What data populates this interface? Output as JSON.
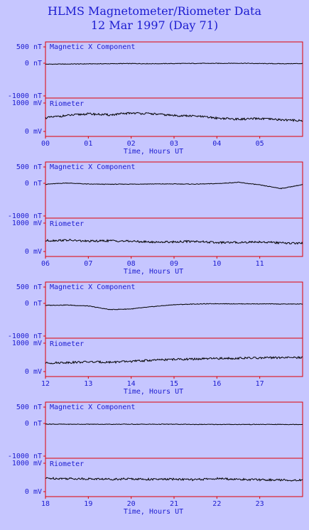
{
  "title": "HLMS Magnetometer/Riometer Data",
  "subtitle": "12 Mar 1997 (Day 71)",
  "colors": {
    "background": "#c6c6ff",
    "frame": "#e00000",
    "text": "#1c1cd0",
    "trace": "#000000"
  },
  "chart_data": [
    {
      "type": "line",
      "x_hour_ticks": [
        "00",
        "01",
        "02",
        "03",
        "04",
        "05"
      ],
      "xlabel": "Time, Hours UT",
      "xlim": [
        0,
        6
      ],
      "top": {
        "label": "Magnetic X Component",
        "ylim": [
          -1000,
          500
        ],
        "ytick_labels": [
          "500 nT",
          "0 nT",
          "-1000 nT"
        ],
        "x": [
          0,
          0.5,
          1,
          1.5,
          2,
          2.5,
          3,
          3.5,
          4,
          4.5,
          5,
          5.5,
          6
        ],
        "y": [
          -30,
          -25,
          -20,
          -15,
          -10,
          -15,
          -10,
          -5,
          -5,
          0,
          -10,
          -15,
          -10
        ]
      },
      "bottom": {
        "label": "Riometer",
        "ylim": [
          0,
          1000
        ],
        "ytick_labels": [
          "1000 mV",
          "0 mV"
        ],
        "x": [
          0,
          0.5,
          1,
          1.5,
          2,
          2.5,
          3,
          3.5,
          4,
          4.5,
          5,
          5.5,
          6
        ],
        "y": [
          480,
          560,
          620,
          580,
          650,
          620,
          560,
          540,
          470,
          430,
          450,
          410,
          380
        ]
      }
    },
    {
      "type": "line",
      "x_hour_ticks": [
        "06",
        "07",
        "08",
        "09",
        "10",
        "11"
      ],
      "xlabel": "Time, Hours UT",
      "xlim": [
        6,
        12
      ],
      "top": {
        "label": "Magnetic X Component",
        "ylim": [
          -1000,
          500
        ],
        "ytick_labels": [
          "500 nT",
          "0 nT",
          "-1000 nT"
        ],
        "x": [
          6,
          6.5,
          7,
          7.5,
          8,
          8.5,
          9,
          9.5,
          10,
          10.5,
          11,
          11.5,
          12
        ],
        "y": [
          -30,
          10,
          -25,
          -30,
          -25,
          -20,
          -20,
          -25,
          -10,
          30,
          -50,
          -160,
          -40
        ]
      },
      "bottom": {
        "label": "Riometer",
        "ylim": [
          0,
          1000
        ],
        "ytick_labels": [
          "1000 mV",
          "0 mV"
        ],
        "x": [
          6,
          6.5,
          7,
          7.5,
          8,
          8.5,
          9,
          9.5,
          10,
          10.5,
          11,
          11.5,
          12
        ],
        "y": [
          380,
          400,
          360,
          380,
          360,
          330,
          340,
          360,
          310,
          320,
          340,
          300,
          290
        ]
      }
    },
    {
      "type": "line",
      "x_hour_ticks": [
        "12",
        "13",
        "14",
        "15",
        "16",
        "17"
      ],
      "xlabel": "Time, Hours UT",
      "xlim": [
        12,
        18
      ],
      "top": {
        "label": "Magnetic X Component",
        "ylim": [
          -1000,
          500
        ],
        "ytick_labels": [
          "500 nT",
          "0 nT",
          "-1000 nT"
        ],
        "x": [
          12,
          12.5,
          13,
          13.5,
          14,
          14.5,
          15,
          15.5,
          16,
          16.5,
          17,
          17.5,
          18
        ],
        "y": [
          -60,
          -50,
          -80,
          -190,
          -170,
          -100,
          -40,
          -20,
          -10,
          -15,
          -15,
          -20,
          -20
        ]
      },
      "bottom": {
        "label": "Riometer",
        "ylim": [
          0,
          1000
        ],
        "ytick_labels": [
          "1000 mV",
          "0 mV"
        ],
        "x": [
          12,
          12.5,
          13,
          13.5,
          14,
          14.5,
          15,
          15.5,
          16,
          16.5,
          17,
          17.5,
          18
        ],
        "y": [
          300,
          320,
          340,
          330,
          360,
          400,
          430,
          440,
          460,
          470,
          480,
          490,
          490
        ]
      }
    },
    {
      "type": "line",
      "x_hour_ticks": [
        "18",
        "19",
        "20",
        "21",
        "22",
        "23"
      ],
      "xlabel": "Time, Hours UT",
      "xlim": [
        18,
        24
      ],
      "top": {
        "label": "Magnetic X Component",
        "ylim": [
          -1000,
          500
        ],
        "ytick_labels": [
          "500 nT",
          "0 nT",
          "-1000 nT"
        ],
        "x": [
          18,
          18.5,
          19,
          19.5,
          20,
          20.5,
          21,
          21.5,
          22,
          22.5,
          23,
          23.5,
          24
        ],
        "y": [
          -20,
          -25,
          -25,
          -25,
          -25,
          -25,
          -25,
          -30,
          -30,
          -30,
          -30,
          -30,
          -30
        ]
      },
      "bottom": {
        "label": "Riometer",
        "ylim": [
          0,
          1000
        ],
        "ytick_labels": [
          "1000 mV",
          "0 mV"
        ],
        "x": [
          18,
          18.5,
          19,
          19.5,
          20,
          20.5,
          21,
          21.5,
          22,
          22.5,
          23,
          23.5,
          24
        ],
        "y": [
          470,
          460,
          450,
          440,
          450,
          430,
          440,
          420,
          460,
          430,
          420,
          410,
          400
        ]
      }
    }
  ]
}
